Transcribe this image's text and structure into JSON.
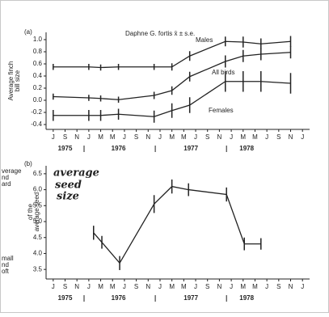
{
  "chart_data": [
    {
      "type": "line",
      "panel": "(a)",
      "title": "Daphne G. fortis x̄ ± s.e.",
      "ylabel": [
        "Average finch",
        "bill size"
      ],
      "xticks": [
        {
          "value": 0,
          "label": "J"
        },
        {
          "value": 1,
          "label": "S"
        },
        {
          "value": 2,
          "label": "N"
        },
        {
          "value": 3,
          "label": "J"
        },
        {
          "value": 4,
          "label": "M"
        },
        {
          "value": 5,
          "label": "M"
        },
        {
          "value": 6,
          "label": "J"
        },
        {
          "value": 7,
          "label": "S"
        },
        {
          "value": 8,
          "label": "N"
        },
        {
          "value": 9,
          "label": "J"
        },
        {
          "value": 10,
          "label": "M"
        },
        {
          "value": 11,
          "label": "M"
        },
        {
          "value": 12,
          "label": "J"
        },
        {
          "value": 13,
          "label": "S"
        },
        {
          "value": 14,
          "label": "N"
        },
        {
          "value": 15,
          "label": "J"
        },
        {
          "value": 16,
          "label": "M"
        },
        {
          "value": 17,
          "label": "M"
        },
        {
          "value": 18,
          "label": "J"
        },
        {
          "value": 19,
          "label": "S"
        },
        {
          "value": 20,
          "label": "N"
        },
        {
          "value": 21,
          "label": "J"
        }
      ],
      "xlim": [
        -0.6,
        21.6
      ],
      "years": [
        "1975",
        "1976",
        "1977",
        "1978"
      ],
      "ylim": [
        -0.48,
        1.12
      ],
      "yticks": [
        {
          "value": 1,
          "label": "1.0"
        },
        0.8,
        0.6,
        0.4,
        0.2,
        {
          "value": 0,
          "label": "0.0"
        },
        -0.2,
        -0.4
      ],
      "series": [
        {
          "name": "Males",
          "color": "#222222",
          "x": [
            0,
            3,
            4,
            5.5,
            8.5,
            10,
            11.5,
            14.5,
            16,
            17.5,
            20
          ],
          "values": [
            0.55,
            0.55,
            0.54,
            0.55,
            0.55,
            0.55,
            0.73,
            0.97,
            0.96,
            0.93,
            0.97
          ],
          "errors": [
            0.05,
            0.05,
            0.05,
            0.05,
            0.05,
            0.06,
            0.08,
            0.08,
            0.09,
            0.09,
            0.09
          ]
        },
        {
          "name": "All birds",
          "color": "#222222",
          "x": [
            0,
            3,
            4,
            5.5,
            8.5,
            10,
            11.5,
            14.5,
            16,
            17.5,
            20
          ],
          "values": [
            0.06,
            0.04,
            0.03,
            0.01,
            0.08,
            0.16,
            0.39,
            0.64,
            0.73,
            0.76,
            0.79
          ],
          "errors": [
            0.05,
            0.05,
            0.05,
            0.05,
            0.06,
            0.07,
            0.08,
            0.1,
            0.1,
            0.1,
            0.1
          ]
        },
        {
          "name": "Females",
          "color": "#222222",
          "x": [
            0,
            3,
            4,
            5.5,
            8.5,
            10,
            11.5,
            14.5,
            16,
            17.5,
            20
          ],
          "values": [
            -0.25,
            -0.25,
            -0.25,
            -0.23,
            -0.27,
            -0.17,
            -0.08,
            0.31,
            0.31,
            0.31,
            0.28
          ],
          "errors": [
            0.09,
            0.09,
            0.09,
            0.09,
            0.1,
            0.12,
            0.13,
            0.17,
            0.17,
            0.17,
            0.17
          ]
        }
      ]
    },
    {
      "type": "line",
      "panel": "(b)",
      "ylabel": [
        "of the",
        "average seed"
      ],
      "cut_labels": [
        "verage",
        "nd",
        "ard",
        "mall",
        "nd",
        "oft"
      ],
      "annotation": [
        "average",
        "seed",
        "size"
      ],
      "xticks": [
        {
          "value": 0,
          "label": "J"
        },
        {
          "value": 1,
          "label": "S"
        },
        {
          "value": 2,
          "label": "N"
        },
        {
          "value": 3,
          "label": "J"
        },
        {
          "value": 4,
          "label": "M"
        },
        {
          "value": 5,
          "label": "M"
        },
        {
          "value": 6,
          "label": "J"
        },
        {
          "value": 7,
          "label": "S"
        },
        {
          "value": 8,
          "label": "N"
        },
        {
          "value": 9,
          "label": "J"
        },
        {
          "value": 10,
          "label": "M"
        },
        {
          "value": 11,
          "label": "M"
        },
        {
          "value": 12,
          "label": "J"
        },
        {
          "value": 13,
          "label": "S"
        },
        {
          "value": 14,
          "label": "N"
        },
        {
          "value": 15,
          "label": "J"
        },
        {
          "value": 16,
          "label": "M"
        },
        {
          "value": 17,
          "label": "M"
        },
        {
          "value": 18,
          "label": "J"
        },
        {
          "value": 19,
          "label": "S"
        },
        {
          "value": 20,
          "label": "N"
        },
        {
          "value": 21,
          "label": "J"
        }
      ],
      "xlim": [
        -0.6,
        21.6
      ],
      "years": [
        "1975",
        "1976",
        "1977",
        "1978"
      ],
      "ylim": [
        3.2,
        6.75
      ],
      "yticks": [
        6.5,
        {
          "value": 6,
          "label": "6.0"
        },
        5.5,
        {
          "value": 5,
          "label": "5.0"
        },
        4.5,
        {
          "value": 4,
          "label": "4.0"
        },
        3.5
      ],
      "series": [
        {
          "color": "#222222",
          "x": [
            3.4,
            4.1,
            5.6,
            8.5,
            10,
            11.4,
            14.6,
            16.1,
            17.5
          ],
          "values": [
            4.65,
            4.35,
            3.7,
            5.55,
            6.1,
            6.0,
            5.85,
            4.3,
            4.3
          ],
          "errors": [
            0.22,
            0.2,
            0.22,
            0.28,
            0.22,
            0.2,
            0.22,
            0.2,
            0.18
          ]
        }
      ]
    }
  ]
}
